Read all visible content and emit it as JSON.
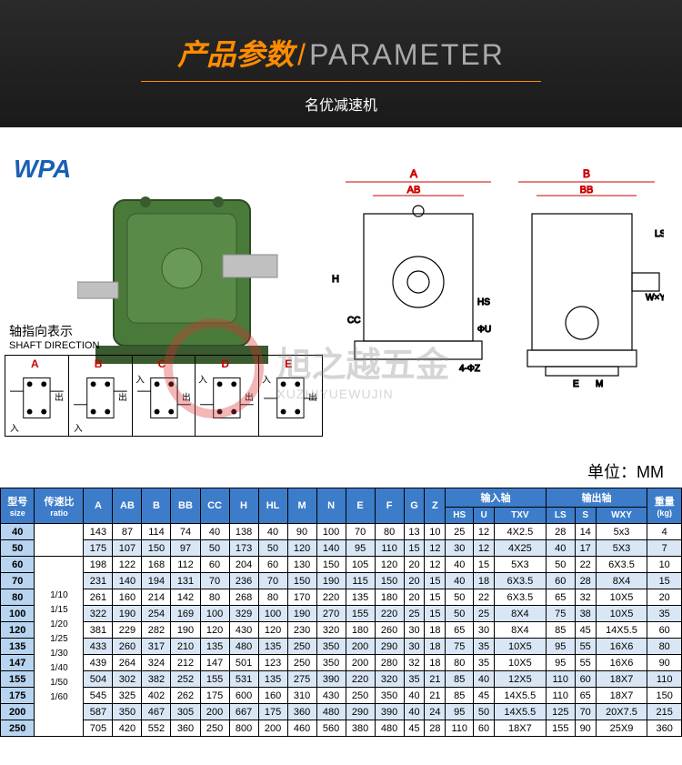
{
  "header": {
    "title_cn": "产品参数",
    "title_en": "PARAMETER",
    "subtitle": "名优减速机"
  },
  "model": "WPA",
  "shaft_label_cn": "轴指向表示",
  "shaft_label_en": "SHAFT DIRECTION",
  "shaft_options": [
    "A",
    "B",
    "C",
    "D",
    "E"
  ],
  "shaft_glyph_in": "入",
  "shaft_glyph_out": "出",
  "watermark_cn": "旭之越五金",
  "watermark_en": "XUZHIYUEWUJIN",
  "unit_label": "单位：MM",
  "tech_dims": {
    "A": "A",
    "B": "B",
    "AB": "AB",
    "BB": "BB",
    "H": "H",
    "CC": "CC",
    "HS": "HS",
    "LS": "LS",
    "WxY": "W×Y",
    "E": "E",
    "M": "M",
    "holes": "4-ΦZ",
    "U": "ΦU"
  },
  "table": {
    "headers_main": {
      "size_cn": "型号",
      "size_en": "size",
      "ratio_cn": "传速比",
      "ratio_en": "ratio",
      "input_shaft": "输入轴",
      "output_shaft": "输出轴",
      "weight_cn": "重量",
      "weight_en": "(kg)"
    },
    "headers_dims": [
      "A",
      "AB",
      "B",
      "BB",
      "CC",
      "H",
      "HL",
      "M",
      "N",
      "E",
      "F",
      "G",
      "Z"
    ],
    "headers_in": [
      "HS",
      "U",
      "TXV"
    ],
    "headers_out": [
      "LS",
      "S",
      "WXY"
    ],
    "ratios": [
      "1/10",
      "1/15",
      "1/20",
      "1/25",
      "1/30",
      "1/40",
      "1/50",
      "1/60"
    ],
    "rows": [
      {
        "size": "40",
        "v": [
          "143",
          "87",
          "114",
          "74",
          "40",
          "138",
          "40",
          "90",
          "100",
          "70",
          "80",
          "13",
          "10",
          "25",
          "12",
          "4X2.5",
          "28",
          "14",
          "5x3",
          "4"
        ]
      },
      {
        "size": "50",
        "v": [
          "175",
          "107",
          "150",
          "97",
          "50",
          "173",
          "50",
          "120",
          "140",
          "95",
          "110",
          "15",
          "12",
          "30",
          "12",
          "4X25",
          "40",
          "17",
          "5X3",
          "7"
        ]
      },
      {
        "size": "60",
        "v": [
          "198",
          "122",
          "168",
          "112",
          "60",
          "204",
          "60",
          "130",
          "150",
          "105",
          "120",
          "20",
          "12",
          "40",
          "15",
          "5X3",
          "50",
          "22",
          "6X3.5",
          "10"
        ]
      },
      {
        "size": "70",
        "v": [
          "231",
          "140",
          "194",
          "131",
          "70",
          "236",
          "70",
          "150",
          "190",
          "115",
          "150",
          "20",
          "15",
          "40",
          "18",
          "6X3.5",
          "60",
          "28",
          "8X4",
          "15"
        ]
      },
      {
        "size": "80",
        "v": [
          "261",
          "160",
          "214",
          "142",
          "80",
          "268",
          "80",
          "170",
          "220",
          "135",
          "180",
          "20",
          "15",
          "50",
          "22",
          "6X3.5",
          "65",
          "32",
          "10X5",
          "20"
        ]
      },
      {
        "size": "100",
        "v": [
          "322",
          "190",
          "254",
          "169",
          "100",
          "329",
          "100",
          "190",
          "270",
          "155",
          "220",
          "25",
          "15",
          "50",
          "25",
          "8X4",
          "75",
          "38",
          "10X5",
          "35"
        ]
      },
      {
        "size": "120",
        "v": [
          "381",
          "229",
          "282",
          "190",
          "120",
          "430",
          "120",
          "230",
          "320",
          "180",
          "260",
          "30",
          "18",
          "65",
          "30",
          "8X4",
          "85",
          "45",
          "14X5.5",
          "60"
        ]
      },
      {
        "size": "135",
        "v": [
          "433",
          "260",
          "317",
          "210",
          "135",
          "480",
          "135",
          "250",
          "350",
          "200",
          "290",
          "30",
          "18",
          "75",
          "35",
          "10X5",
          "95",
          "55",
          "16X6",
          "80"
        ]
      },
      {
        "size": "147",
        "v": [
          "439",
          "264",
          "324",
          "212",
          "147",
          "501",
          "123",
          "250",
          "350",
          "200",
          "280",
          "32",
          "18",
          "80",
          "35",
          "10X5",
          "95",
          "55",
          "16X6",
          "90"
        ]
      },
      {
        "size": "155",
        "v": [
          "504",
          "302",
          "382",
          "252",
          "155",
          "531",
          "135",
          "275",
          "390",
          "220",
          "320",
          "35",
          "21",
          "85",
          "40",
          "12X5",
          "110",
          "60",
          "18X7",
          "110"
        ]
      },
      {
        "size": "175",
        "v": [
          "545",
          "325",
          "402",
          "262",
          "175",
          "600",
          "160",
          "310",
          "430",
          "250",
          "350",
          "40",
          "21",
          "85",
          "45",
          "14X5.5",
          "110",
          "65",
          "18X7",
          "150"
        ]
      },
      {
        "size": "200",
        "v": [
          "587",
          "350",
          "467",
          "305",
          "200",
          "667",
          "175",
          "360",
          "480",
          "290",
          "390",
          "40",
          "24",
          "95",
          "50",
          "14X5.5",
          "125",
          "70",
          "20X7.5",
          "215"
        ]
      },
      {
        "size": "250",
        "v": [
          "705",
          "420",
          "552",
          "360",
          "250",
          "800",
          "200",
          "460",
          "560",
          "380",
          "480",
          "45",
          "28",
          "110",
          "60",
          "18X7",
          "155",
          "90",
          "25X9",
          "360"
        ]
      }
    ]
  }
}
